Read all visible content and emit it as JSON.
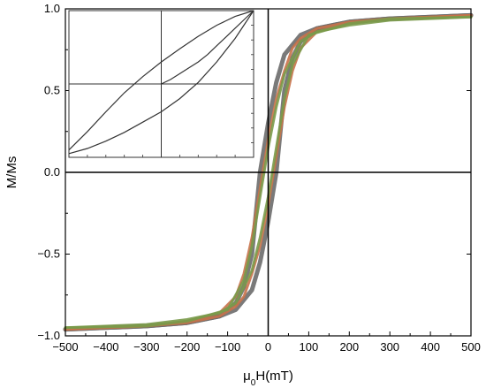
{
  "chart_data": [
    {
      "type": "line",
      "role": "main",
      "xlabel_main": "μ",
      "xlabel_sub": "0",
      "xlabel_rest": "H(mT)",
      "ylabel": "M/Ms",
      "xlim": [
        -500,
        500
      ],
      "ylim": [
        -1.0,
        1.0
      ],
      "xticks": [
        -500,
        -400,
        -300,
        -200,
        -100,
        0,
        100,
        200,
        300,
        400,
        500
      ],
      "yticks": [
        -1.0,
        -0.5,
        0.0,
        0.5,
        1.0
      ],
      "ytick_labels": [
        "−1.0",
        "−0.5",
        "0.0",
        "0.5",
        "1.0"
      ],
      "xtick_labels": [
        "−500",
        "−400",
        "−300",
        "−200",
        "−100",
        "0",
        "100",
        "200",
        "300",
        "400",
        "500"
      ],
      "grid": false,
      "series": [
        {
          "color": "#6b6b6b",
          "branch": "descending",
          "x": [
            500,
            300,
            200,
            120,
            80,
            40,
            20,
            0,
            -20,
            -30,
            -40,
            -60,
            -80,
            -120,
            -200,
            -300,
            -500
          ],
          "y": [
            0.96,
            0.94,
            0.92,
            0.88,
            0.84,
            0.72,
            0.55,
            0.3,
            0.0,
            -0.25,
            -0.5,
            -0.7,
            -0.8,
            -0.88,
            -0.92,
            -0.94,
            -0.96
          ]
        },
        {
          "color": "#6b6b6b",
          "branch": "ascending",
          "x": [
            -500,
            -300,
            -200,
            -120,
            -80,
            -40,
            -20,
            0,
            20,
            30,
            40,
            60,
            80,
            120,
            200,
            300,
            500
          ],
          "y": [
            -0.96,
            -0.94,
            -0.92,
            -0.88,
            -0.84,
            -0.72,
            -0.55,
            -0.3,
            0.0,
            0.25,
            0.5,
            0.7,
            0.8,
            0.88,
            0.92,
            0.94,
            0.96
          ]
        },
        {
          "color": "#c8724a",
          "branch": "descending",
          "x": [
            500,
            300,
            200,
            120,
            80,
            60,
            40,
            20,
            0,
            -20,
            -40,
            -60,
            -80,
            -120,
            -200,
            -300,
            -500
          ],
          "y": [
            0.96,
            0.94,
            0.92,
            0.88,
            0.82,
            0.76,
            0.62,
            0.45,
            0.2,
            -0.1,
            -0.4,
            -0.62,
            -0.76,
            -0.86,
            -0.91,
            -0.94,
            -0.96
          ]
        },
        {
          "color": "#c8724a",
          "branch": "ascending",
          "x": [
            -500,
            -300,
            -200,
            -120,
            -80,
            -60,
            -40,
            -20,
            0,
            20,
            40,
            60,
            80,
            120,
            200,
            300,
            500
          ],
          "y": [
            -0.96,
            -0.94,
            -0.92,
            -0.88,
            -0.82,
            -0.76,
            -0.62,
            -0.45,
            -0.2,
            0.1,
            0.4,
            0.62,
            0.76,
            0.86,
            0.91,
            0.94,
            0.96
          ]
        },
        {
          "color": "#7a9a4a",
          "branch": "descending",
          "x": [
            500,
            300,
            200,
            120,
            80,
            40,
            20,
            0,
            -20,
            -40,
            -60,
            -100,
            -200,
            -300,
            -500
          ],
          "y": [
            0.95,
            0.93,
            0.9,
            0.86,
            0.8,
            0.6,
            0.4,
            0.15,
            -0.15,
            -0.45,
            -0.66,
            -0.84,
            -0.91,
            -0.94,
            -0.95
          ]
        },
        {
          "color": "#7a9a4a",
          "branch": "ascending",
          "x": [
            -500,
            -300,
            -200,
            -120,
            -80,
            -40,
            -20,
            0,
            20,
            40,
            60,
            100,
            200,
            300,
            500
          ],
          "y": [
            -0.95,
            -0.93,
            -0.9,
            -0.86,
            -0.8,
            -0.6,
            -0.4,
            -0.15,
            0.15,
            0.45,
            0.66,
            0.84,
            0.91,
            0.94,
            0.95
          ]
        }
      ]
    },
    {
      "type": "line",
      "role": "inset",
      "xlim": [
        -1,
        1
      ],
      "ylim": [
        -1,
        1
      ],
      "tick_labels_shown": false,
      "series": [
        {
          "color": "#333333",
          "branch": "upper",
          "x": [
            -1,
            -0.8,
            -0.6,
            -0.4,
            -0.2,
            0,
            0.2,
            0.4,
            0.6,
            0.8,
            1
          ],
          "y": [
            -0.9,
            -0.65,
            -0.38,
            -0.12,
            0.1,
            0.3,
            0.48,
            0.65,
            0.8,
            0.92,
            1
          ]
        },
        {
          "color": "#333333",
          "branch": "lower",
          "x": [
            -1,
            -0.8,
            -0.6,
            -0.4,
            -0.2,
            0,
            0.2,
            0.4,
            0.6,
            0.8,
            1
          ],
          "y": [
            -0.95,
            -0.88,
            -0.78,
            -0.66,
            -0.52,
            -0.38,
            -0.2,
            0.02,
            0.3,
            0.62,
            1
          ]
        },
        {
          "color": "#333333",
          "branch": "virgin",
          "x": [
            0,
            0.1,
            0.2,
            0.3,
            0.4,
            0.5,
            0.6,
            0.7,
            0.8,
            0.9,
            1
          ],
          "y": [
            0,
            0.06,
            0.14,
            0.22,
            0.3,
            0.4,
            0.52,
            0.64,
            0.76,
            0.88,
            1
          ]
        }
      ]
    }
  ]
}
